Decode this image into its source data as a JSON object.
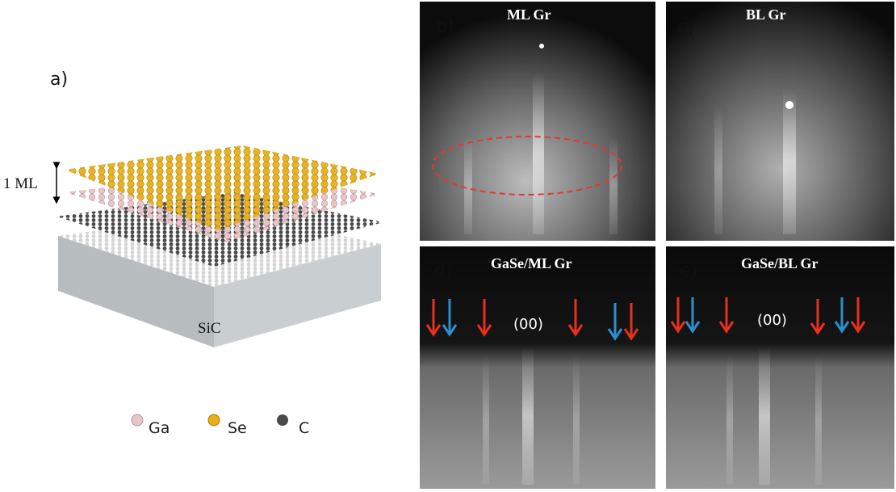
{
  "panel_a": {
    "label": "a)",
    "thickness_label": "1 ML",
    "substrate_label": "SiC",
    "legend": [
      "Ga",
      "Se",
      "C"
    ]
  },
  "panel_b": {
    "label": "b)",
    "title": "ML Gr"
  },
  "panel_c": {
    "label": "c)",
    "title": "BL Gr"
  },
  "panel_d": {
    "label": "d)",
    "title": "GaSe/ML Gr",
    "spot_label": "(00)"
  },
  "panel_e": {
    "label": "e)",
    "title": "GaSe/BL Gr",
    "spot_label": "(00)"
  }
}
